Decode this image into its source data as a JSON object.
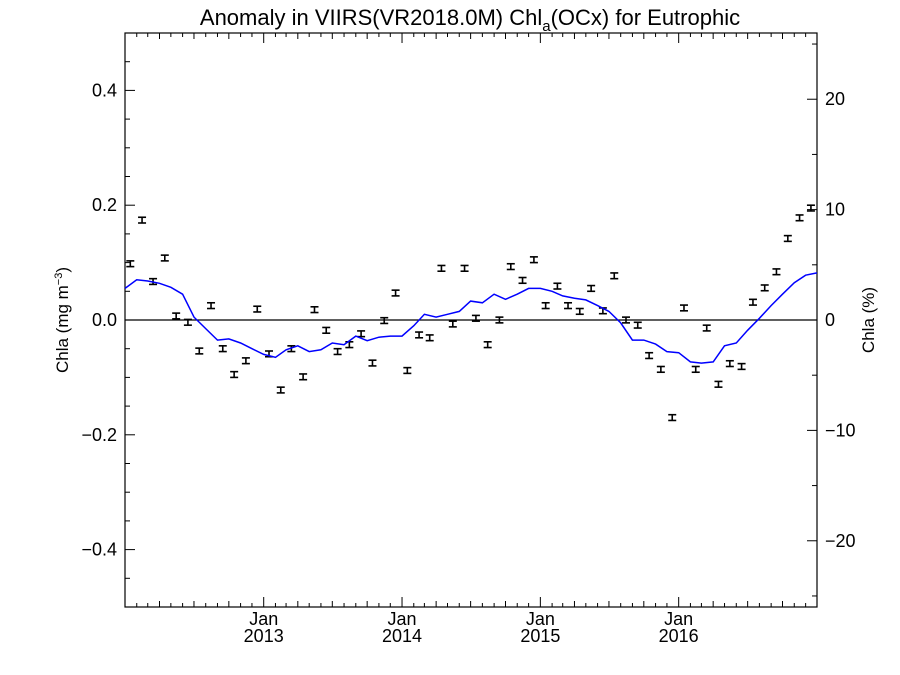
{
  "chart_data": {
    "type": "line",
    "title": {
      "prefix": "Anomaly in VIIRS(VR2018.0M) Chl",
      "subscript": "a",
      "suffix": "(OCx) for Eutrophic"
    },
    "ylabel_left": {
      "prefix": "Chla (mg m",
      "superscript": "−3",
      "suffix": ")"
    },
    "ylabel_right": "Chla (%)",
    "xlim": [
      "2012-01-01",
      "2016-12-31"
    ],
    "ylim_left": [
      -0.5,
      0.5
    ],
    "ylim_right": [
      -26,
      26
    ],
    "x_ticks": [
      {
        "date": "2013-01-01",
        "month": "Jan",
        "year": "2013"
      },
      {
        "date": "2014-01-01",
        "month": "Jan",
        "year": "2014"
      },
      {
        "date": "2015-01-01",
        "month": "Jan",
        "year": "2015"
      },
      {
        "date": "2016-01-01",
        "month": "Jan",
        "year": "2016"
      }
    ],
    "y_ticks_left": [
      {
        "value": 0.4,
        "label": "0.4"
      },
      {
        "value": 0.2,
        "label": "0.2"
      },
      {
        "value": 0.0,
        "label": "0.0"
      },
      {
        "value": -0.2,
        "label": "−0.2"
      },
      {
        "value": -0.4,
        "label": "−0.4"
      }
    ],
    "y_ticks_right": [
      {
        "value": 20,
        "label": "20"
      },
      {
        "value": 10,
        "label": "10"
      },
      {
        "value": 0,
        "label": "0"
      },
      {
        "value": -10,
        "label": "−10"
      },
      {
        "value": -20,
        "label": "−20"
      }
    ],
    "zero_line": true,
    "series": [
      {
        "kind": "errorbar",
        "color": "#000000",
        "x": [
          "2012-01-15",
          "2012-02-15",
          "2012-03-15",
          "2012-04-15",
          "2012-05-15",
          "2012-06-15",
          "2012-07-15",
          "2012-08-15",
          "2012-09-15",
          "2012-10-15",
          "2012-11-15",
          "2012-12-15",
          "2013-01-15",
          "2013-02-15",
          "2013-03-15",
          "2013-04-15",
          "2013-05-15",
          "2013-06-15",
          "2013-07-15",
          "2013-08-15",
          "2013-09-15",
          "2013-10-15",
          "2013-11-15",
          "2013-12-15",
          "2014-01-15",
          "2014-02-15",
          "2014-03-15",
          "2014-04-15",
          "2014-05-15",
          "2014-06-15",
          "2014-07-15",
          "2014-08-15",
          "2014-09-15",
          "2014-10-15",
          "2014-11-15",
          "2014-12-15",
          "2015-01-15",
          "2015-02-15",
          "2015-03-15",
          "2015-04-15",
          "2015-05-15",
          "2015-06-15",
          "2015-07-15",
          "2015-08-15",
          "2015-09-15",
          "2015-10-15",
          "2015-11-15",
          "2015-12-15",
          "2016-01-15",
          "2016-02-15",
          "2016-03-15",
          "2016-04-15",
          "2016-05-15",
          "2016-06-15",
          "2016-07-15",
          "2016-08-15",
          "2016-09-15",
          "2016-10-15",
          "2016-11-15",
          "2016-12-15"
        ],
        "values": [
          0.098,
          0.174,
          0.067,
          0.108,
          0.007,
          -0.004,
          -0.054,
          0.025,
          -0.05,
          -0.095,
          -0.071,
          0.019,
          -0.059,
          -0.122,
          -0.05,
          -0.099,
          0.018,
          -0.018,
          -0.055,
          -0.043,
          -0.024,
          -0.075,
          -0.001,
          0.047,
          -0.088,
          -0.026,
          -0.031,
          0.09,
          -0.007,
          0.09,
          0.003,
          -0.043,
          0.0,
          0.093,
          0.069,
          0.105,
          0.025,
          0.059,
          0.025,
          0.015,
          0.055,
          0.016,
          0.077,
          0.0,
          -0.009,
          -0.062,
          -0.086,
          -0.17,
          0.021,
          -0.086,
          -0.014,
          -0.112,
          -0.076,
          -0.081,
          0.031,
          0.056,
          0.084,
          0.142,
          0.178,
          0.195
        ],
        "error": [
          0.005,
          0.005,
          0.005,
          0.005,
          0.005,
          0.005,
          0.005,
          0.005,
          0.005,
          0.005,
          0.005,
          0.005,
          0.005,
          0.005,
          0.005,
          0.005,
          0.005,
          0.005,
          0.005,
          0.005,
          0.005,
          0.005,
          0.005,
          0.005,
          0.005,
          0.005,
          0.005,
          0.005,
          0.005,
          0.005,
          0.005,
          0.005,
          0.005,
          0.005,
          0.005,
          0.005,
          0.005,
          0.005,
          0.005,
          0.005,
          0.005,
          0.005,
          0.005,
          0.005,
          0.005,
          0.005,
          0.005,
          0.005,
          0.005,
          0.005,
          0.005,
          0.005,
          0.005,
          0.005,
          0.005,
          0.005,
          0.005,
          0.005,
          0.005,
          0.005
        ]
      },
      {
        "kind": "line",
        "color": "#0000ff",
        "x": [
          "2012-01-01",
          "2012-02-01",
          "2012-03-01",
          "2012-04-01",
          "2012-05-01",
          "2012-06-01",
          "2012-07-01",
          "2012-08-01",
          "2012-09-01",
          "2012-10-01",
          "2012-11-01",
          "2012-12-01",
          "2013-01-01",
          "2013-02-01",
          "2013-03-01",
          "2013-04-01",
          "2013-05-01",
          "2013-06-01",
          "2013-07-01",
          "2013-08-01",
          "2013-09-01",
          "2013-10-01",
          "2013-11-01",
          "2013-12-01",
          "2014-01-01",
          "2014-02-01",
          "2014-03-01",
          "2014-04-01",
          "2014-05-01",
          "2014-06-01",
          "2014-07-01",
          "2014-08-01",
          "2014-09-01",
          "2014-10-01",
          "2014-11-01",
          "2014-12-01",
          "2015-01-01",
          "2015-02-01",
          "2015-03-01",
          "2015-04-01",
          "2015-05-01",
          "2015-06-01",
          "2015-07-01",
          "2015-08-01",
          "2015-09-01",
          "2015-10-01",
          "2015-11-01",
          "2015-12-01",
          "2016-01-01",
          "2016-02-01",
          "2016-03-01",
          "2016-04-01",
          "2016-05-01",
          "2016-06-01",
          "2016-07-01",
          "2016-08-01",
          "2016-09-01",
          "2016-10-01",
          "2016-11-01",
          "2016-12-01",
          "2016-12-31"
        ],
        "values": [
          0.055,
          0.07,
          0.068,
          0.064,
          0.057,
          0.045,
          0.005,
          -0.015,
          -0.035,
          -0.033,
          -0.04,
          -0.05,
          -0.06,
          -0.065,
          -0.052,
          -0.045,
          -0.055,
          -0.052,
          -0.04,
          -0.043,
          -0.028,
          -0.036,
          -0.03,
          -0.028,
          -0.028,
          -0.01,
          0.01,
          0.005,
          0.01,
          0.015,
          0.033,
          0.03,
          0.045,
          0.036,
          0.045,
          0.055,
          0.055,
          0.05,
          0.042,
          0.038,
          0.035,
          0.025,
          0.015,
          -0.005,
          -0.035,
          -0.035,
          -0.042,
          -0.055,
          -0.057,
          -0.073,
          -0.075,
          -0.073,
          -0.045,
          -0.04,
          -0.018,
          0.003,
          0.025,
          0.045,
          0.065,
          0.078,
          0.082
        ]
      }
    ]
  }
}
